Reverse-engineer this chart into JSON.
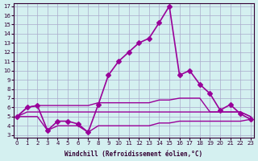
{
  "xlabel": "Windchill (Refroidissement éolien,°C)",
  "bg_color": "#d4f0f0",
  "grid_color": "#aaaacc",
  "line_color": "#990099",
  "xlim": [
    0,
    23
  ],
  "ylim": [
    3,
    17
  ],
  "xticks": [
    0,
    1,
    2,
    3,
    4,
    5,
    6,
    7,
    8,
    9,
    10,
    11,
    12,
    13,
    14,
    15,
    16,
    17,
    18,
    19,
    20,
    21,
    22,
    23
  ],
  "yticks": [
    3,
    4,
    5,
    6,
    7,
    8,
    9,
    10,
    11,
    12,
    13,
    14,
    15,
    16,
    17
  ],
  "series": [
    {
      "x": [
        0,
        1,
        2,
        3,
        4,
        5,
        6,
        7,
        8,
        9,
        10,
        11,
        12,
        13,
        14,
        15,
        16,
        17,
        18,
        19,
        20,
        21,
        22,
        23
      ],
      "y": [
        5.0,
        6.0,
        6.2,
        3.5,
        4.5,
        4.5,
        4.2,
        3.3,
        6.3,
        9.5,
        11.0,
        12.0,
        13.0,
        13.5,
        15.2,
        17.0,
        9.5,
        10.0,
        8.5,
        7.5,
        5.7,
        6.3,
        5.3,
        4.7
      ],
      "marker": "D",
      "markersize": 3,
      "linewidth": 1.2
    },
    {
      "x": [
        0,
        1,
        2,
        3,
        4,
        5,
        6,
        7,
        8,
        9,
        10,
        11,
        12,
        13,
        14,
        15,
        16,
        17,
        18,
        19,
        20,
        21,
        22,
        23
      ],
      "y": [
        5.0,
        6.0,
        6.2,
        6.2,
        6.2,
        6.2,
        6.2,
        6.2,
        6.5,
        6.5,
        6.5,
        6.5,
        6.5,
        6.5,
        6.8,
        6.8,
        7.0,
        7.0,
        7.0,
        5.5,
        5.5,
        5.5,
        5.5,
        5.0
      ],
      "marker": null,
      "markersize": 0,
      "linewidth": 1.0
    },
    {
      "x": [
        0,
        1,
        2,
        3,
        4,
        5,
        6,
        7,
        8,
        9,
        10,
        11,
        12,
        13,
        14,
        15,
        16,
        17,
        18,
        19,
        20,
        21,
        22,
        23
      ],
      "y": [
        5.0,
        5.5,
        5.5,
        5.5,
        5.5,
        5.5,
        5.5,
        5.5,
        5.5,
        5.5,
        5.5,
        5.5,
        5.5,
        5.5,
        5.5,
        5.5,
        5.5,
        5.5,
        5.5,
        5.5,
        5.5,
        5.5,
        5.5,
        5.0
      ],
      "marker": null,
      "markersize": 0,
      "linewidth": 1.0
    },
    {
      "x": [
        0,
        1,
        2,
        3,
        4,
        5,
        6,
        7,
        8,
        9,
        10,
        11,
        12,
        13,
        14,
        15,
        16,
        17,
        18,
        19,
        20,
        21,
        22,
        23
      ],
      "y": [
        5.0,
        5.0,
        5.0,
        3.5,
        4.0,
        4.0,
        4.0,
        3.3,
        4.0,
        4.0,
        4.0,
        4.0,
        4.0,
        4.0,
        4.3,
        4.3,
        4.5,
        4.5,
        4.5,
        4.5,
        4.5,
        4.5,
        4.5,
        4.7
      ],
      "marker": null,
      "markersize": 0,
      "linewidth": 1.0
    }
  ]
}
